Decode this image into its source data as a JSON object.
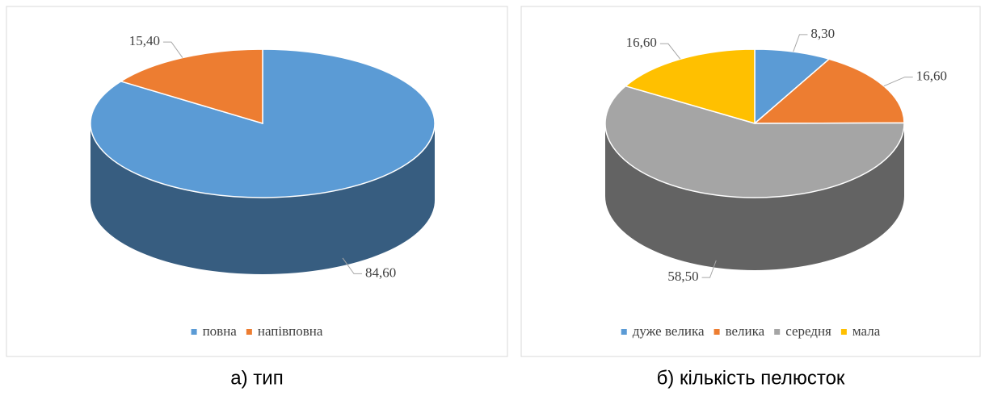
{
  "chart_data": [
    {
      "type": "pie",
      "categories": [
        "повна",
        "напівповна"
      ],
      "values": [
        84.6,
        15.4
      ],
      "value_labels": [
        "84,60",
        "15,40"
      ],
      "colors": [
        "#5b9bd5",
        "#ed7d31"
      ],
      "caption": "а) тип"
    },
    {
      "type": "pie",
      "categories": [
        "дуже велика",
        "велика",
        "середня",
        "мала"
      ],
      "values": [
        8.3,
        16.6,
        58.5,
        16.6
      ],
      "value_labels": [
        "8,30",
        "16,60",
        "58,50",
        "16,60"
      ],
      "colors": [
        "#5b9bd5",
        "#ed7d31",
        "#a5a5a5",
        "#ffc000"
      ],
      "caption": "б) кількість пелюсток"
    }
  ]
}
